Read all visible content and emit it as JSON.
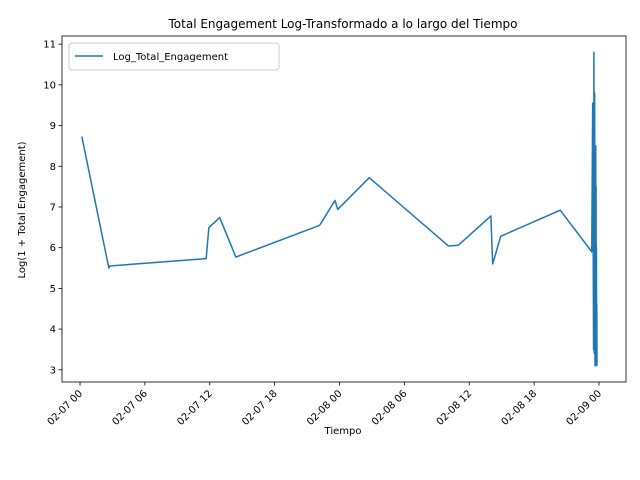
{
  "chart_data": {
    "type": "line",
    "title": "Total Engagement Log-Transformado a lo largo del Tiempo",
    "xlabel": "Tiempo",
    "ylabel": "Log(1 + Total Engagement)",
    "x_type": "datetime",
    "xlim": [
      "2016-02-06 22:20",
      "2016-02-09 02:30"
    ],
    "ylim": [
      2.7,
      11.2
    ],
    "x_ticks": [
      "2016-02-07 00:00",
      "2016-02-07 06:00",
      "2016-02-07 12:00",
      "2016-02-07 18:00",
      "2016-02-08 00:00",
      "2016-02-08 06:00",
      "2016-02-08 12:00",
      "2016-02-08 18:00",
      "2016-02-09 00:00"
    ],
    "x_tick_labels": [
      "02-07 00",
      "02-07 06",
      "02-07 12",
      "02-07 18",
      "02-08 00",
      "02-08 06",
      "02-08 12",
      "02-08 18",
      "02-09 00"
    ],
    "y_ticks": [
      3,
      4,
      5,
      6,
      7,
      8,
      9,
      10,
      11
    ],
    "y_tick_labels": [
      "3",
      "4",
      "5",
      "6",
      "7",
      "8",
      "9",
      "10",
      "11"
    ],
    "legend": {
      "position": "upper-left"
    },
    "grid": false,
    "color": "#1f77b4",
    "series": [
      {
        "name": "Log_Total_Engagement",
        "points": [
          [
            "2016-02-07 00:10",
            8.73
          ],
          [
            "2016-02-07 02:40",
            5.5
          ],
          [
            "2016-02-07 02:45",
            5.55
          ],
          [
            "2016-02-07 11:40",
            5.73
          ],
          [
            "2016-02-07 11:55",
            6.49
          ],
          [
            "2016-02-07 12:55",
            6.74
          ],
          [
            "2016-02-07 14:25",
            5.77
          ],
          [
            "2016-02-07 22:10",
            6.55
          ],
          [
            "2016-02-07 23:35",
            7.16
          ],
          [
            "2016-02-07 23:50",
            6.94
          ],
          [
            "2016-02-08 02:45",
            7.72
          ],
          [
            "2016-02-08 10:05",
            6.04
          ],
          [
            "2016-02-08 11:00",
            6.06
          ],
          [
            "2016-02-08 14:00",
            6.78
          ],
          [
            "2016-02-08 14:10",
            5.6
          ],
          [
            "2016-02-08 14:55",
            6.28
          ],
          [
            "2016-02-08 20:25",
            6.92
          ],
          [
            "2016-02-08 23:20",
            5.9
          ],
          [
            "2016-02-08 23:25",
            9.55
          ],
          [
            "2016-02-08 23:30",
            3.5
          ],
          [
            "2016-02-08 23:32",
            10.8
          ],
          [
            "2016-02-08 23:34",
            3.4
          ],
          [
            "2016-02-08 23:36",
            9.8
          ],
          [
            "2016-02-08 23:38",
            3.1
          ],
          [
            "2016-02-08 23:40",
            8.4
          ],
          [
            "2016-02-08 23:41",
            3.3
          ],
          [
            "2016-02-08 23:42",
            8.5
          ],
          [
            "2016-02-08 23:43",
            3.1
          ],
          [
            "2016-02-08 23:44",
            7.5
          ],
          [
            "2016-02-08 23:45",
            3.5
          ],
          [
            "2016-02-08 23:46",
            6.0
          ],
          [
            "2016-02-08 23:47",
            3.2
          ],
          [
            "2016-02-08 23:48",
            4.6
          ],
          [
            "2016-02-08 23:49",
            3.1
          ]
        ]
      }
    ]
  }
}
